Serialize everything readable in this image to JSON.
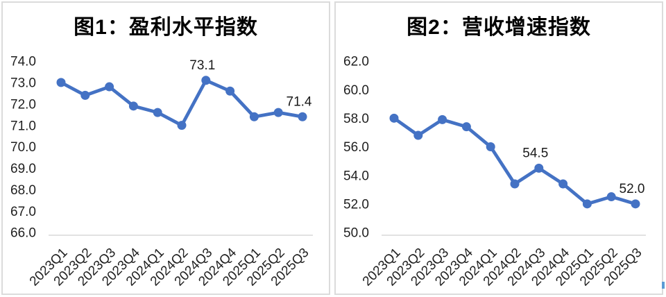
{
  "canvas": {
    "background": "#ffffff",
    "panel_border_color": "#dbdbdb",
    "accent_line_color": "#4472C4",
    "axis_line_color": "#d9d9d9",
    "text_color": "#1f1f1f"
  },
  "chart_data": [
    {
      "type": "line",
      "title": "图1：盈利水平指数",
      "categories": [
        "2023Q1",
        "2023Q2",
        "2023Q3",
        "2023Q4",
        "2024Q1",
        "2024Q2",
        "2024Q3",
        "2024Q4",
        "2025Q1",
        "2025Q2",
        "2025Q3"
      ],
      "values": [
        73.0,
        72.4,
        72.8,
        71.9,
        71.6,
        71.0,
        73.1,
        72.6,
        71.4,
        71.6,
        71.4
      ],
      "ylim": [
        66.0,
        74.0
      ],
      "ytick_step": 1.0,
      "yticks": [
        "74.0",
        "73.0",
        "72.0",
        "71.0",
        "70.0",
        "69.0",
        "68.0",
        "67.0",
        "66.0"
      ],
      "data_labels": [
        {
          "index": 6,
          "text": "73.1"
        },
        {
          "index": 10,
          "text": "71.4"
        }
      ],
      "line_color": "#4472C4",
      "marker": "circle",
      "grid": false,
      "legend": "none",
      "xlabel": "",
      "ylabel": ""
    },
    {
      "type": "line",
      "title": "图2：营收增速指数",
      "categories": [
        "2023Q1",
        "2023Q2",
        "2023Q3",
        "2023Q4",
        "2024Q1",
        "2024Q2",
        "2024Q3",
        "2024Q4",
        "2025Q1",
        "2025Q2",
        "2025Q3"
      ],
      "values": [
        58.0,
        56.8,
        57.9,
        57.4,
        56.0,
        53.4,
        54.5,
        53.4,
        52.0,
        52.5,
        52.0
      ],
      "ylim": [
        50.0,
        62.0
      ],
      "ytick_step": 2.0,
      "yticks": [
        "62.0",
        "60.0",
        "58.0",
        "56.0",
        "54.0",
        "52.0",
        "50.0"
      ],
      "data_labels": [
        {
          "index": 6,
          "text": "54.5"
        },
        {
          "index": 10,
          "text": "52.0"
        }
      ],
      "line_color": "#4472C4",
      "marker": "circle",
      "grid": false,
      "legend": "none",
      "xlabel": "",
      "ylabel": ""
    }
  ]
}
